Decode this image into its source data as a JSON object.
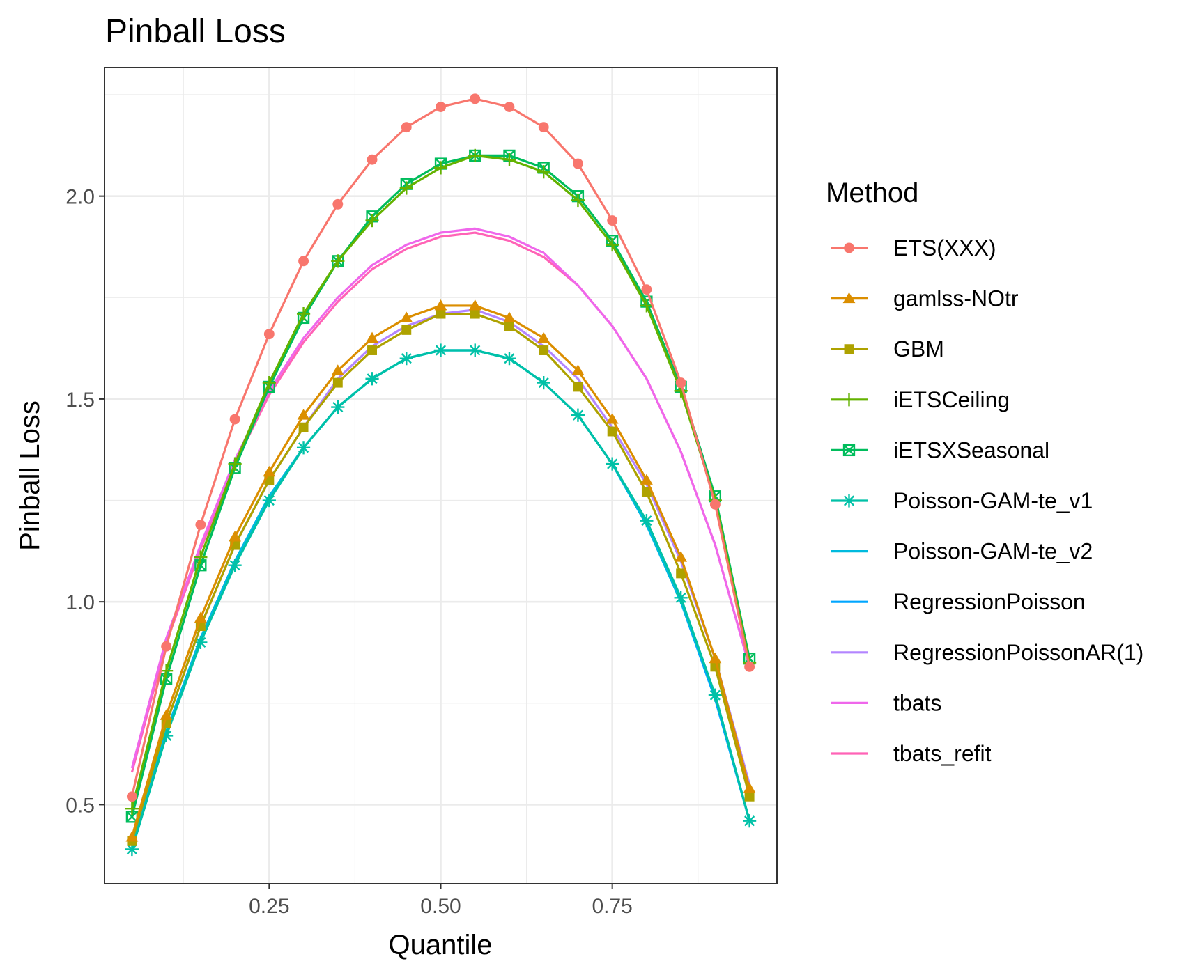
{
  "chart_data": {
    "type": "line",
    "title": "Pinball Loss",
    "xlabel": "Quantile",
    "ylabel": "Pinball Loss",
    "xlim": [
      0.01,
      0.99
    ],
    "ylim": [
      0.305,
      2.317
    ],
    "xticks": [
      0.25,
      0.5,
      0.75
    ],
    "xtick_labels": [
      "0.25",
      "0.50",
      "0.75"
    ],
    "yticks": [
      0.5,
      1.0,
      1.5,
      2.0
    ],
    "ytick_labels": [
      "0.5",
      "1.0",
      "1.5",
      "2.0"
    ],
    "grid": true,
    "legend_title": "Method",
    "legend_position": "right",
    "x": [
      0.05,
      0.1,
      0.15,
      0.2,
      0.25,
      0.3,
      0.35,
      0.4,
      0.45,
      0.5,
      0.55,
      0.6,
      0.65,
      0.7,
      0.75,
      0.8,
      0.85,
      0.9,
      0.95
    ],
    "series": [
      {
        "name": "ETS(XXX)",
        "color": "#F8766D",
        "marker": "circle",
        "values": [
          0.52,
          0.89,
          1.19,
          1.45,
          1.66,
          1.84,
          1.98,
          2.09,
          2.17,
          2.22,
          2.24,
          2.22,
          2.17,
          2.08,
          1.94,
          1.77,
          1.54,
          1.24,
          0.84
        ]
      },
      {
        "name": "gamlss-NOtr",
        "color": "#DB8E00",
        "marker": "triangle",
        "values": [
          0.42,
          0.72,
          0.96,
          1.16,
          1.32,
          1.46,
          1.57,
          1.65,
          1.7,
          1.73,
          1.73,
          1.7,
          1.65,
          1.57,
          1.45,
          1.3,
          1.11,
          0.86,
          0.54
        ]
      },
      {
        "name": "GBM",
        "color": "#AEA200",
        "marker": "square",
        "values": [
          0.41,
          0.7,
          0.94,
          1.14,
          1.3,
          1.43,
          1.54,
          1.62,
          1.67,
          1.71,
          1.71,
          1.68,
          1.62,
          1.53,
          1.42,
          1.27,
          1.07,
          0.84,
          0.52
        ]
      },
      {
        "name": "iETSCeiling",
        "color": "#64B200",
        "marker": "plus",
        "values": [
          0.49,
          0.83,
          1.11,
          1.34,
          1.54,
          1.71,
          1.84,
          1.94,
          2.02,
          2.07,
          2.1,
          2.09,
          2.06,
          1.99,
          1.88,
          1.73,
          1.52,
          1.25,
          0.85
        ]
      },
      {
        "name": "iETSXSeasonal",
        "color": "#00BD5C",
        "marker": "boxx",
        "values": [
          0.47,
          0.81,
          1.09,
          1.33,
          1.53,
          1.7,
          1.84,
          1.95,
          2.03,
          2.08,
          2.1,
          2.1,
          2.07,
          2.0,
          1.89,
          1.74,
          1.53,
          1.26,
          0.86
        ]
      },
      {
        "name": "Poisson-GAM-te_v1",
        "color": "#00C1A7",
        "marker": "asterisk",
        "values": [
          0.39,
          0.67,
          0.9,
          1.09,
          1.25,
          1.38,
          1.48,
          1.55,
          1.6,
          1.62,
          1.62,
          1.6,
          1.54,
          1.46,
          1.34,
          1.2,
          1.01,
          0.77,
          0.46
        ]
      },
      {
        "name": "Poisson-GAM-te_v2",
        "color": "#00BADE",
        "marker": "none",
        "values": [
          0.4,
          0.68,
          0.91,
          1.1,
          1.26,
          1.38,
          1.48,
          1.55,
          1.6,
          1.62,
          1.62,
          1.6,
          1.54,
          1.46,
          1.34,
          1.19,
          1.0,
          0.77,
          0.46
        ]
      },
      {
        "name": "RegressionPoisson",
        "color": "#00A6FF",
        "marker": "none",
        "values": [
          0.4,
          0.68,
          0.91,
          1.1,
          1.26,
          1.38,
          1.48,
          1.55,
          1.6,
          1.62,
          1.62,
          1.6,
          1.54,
          1.46,
          1.34,
          1.19,
          1.0,
          0.76,
          0.46
        ]
      },
      {
        "name": "RegressionPoissonAR(1)",
        "color": "#B385FF",
        "marker": "none",
        "values": [
          0.41,
          0.7,
          0.94,
          1.14,
          1.3,
          1.43,
          1.55,
          1.63,
          1.68,
          1.71,
          1.72,
          1.69,
          1.63,
          1.55,
          1.43,
          1.29,
          1.1,
          0.86,
          0.55
        ]
      },
      {
        "name": "tbats",
        "color": "#EF67EB",
        "marker": "none",
        "values": [
          0.59,
          0.91,
          1.14,
          1.35,
          1.52,
          1.65,
          1.75,
          1.83,
          1.88,
          1.91,
          1.92,
          1.9,
          1.86,
          1.78,
          1.68,
          1.55,
          1.37,
          1.14,
          0.84
        ]
      },
      {
        "name": "tbats_refit",
        "color": "#FF63B6",
        "marker": "none",
        "values": [
          0.58,
          0.9,
          1.13,
          1.34,
          1.51,
          1.64,
          1.74,
          1.82,
          1.87,
          1.9,
          1.91,
          1.89,
          1.85,
          1.78,
          1.68,
          1.55,
          1.37,
          1.14,
          0.84
        ]
      }
    ]
  }
}
